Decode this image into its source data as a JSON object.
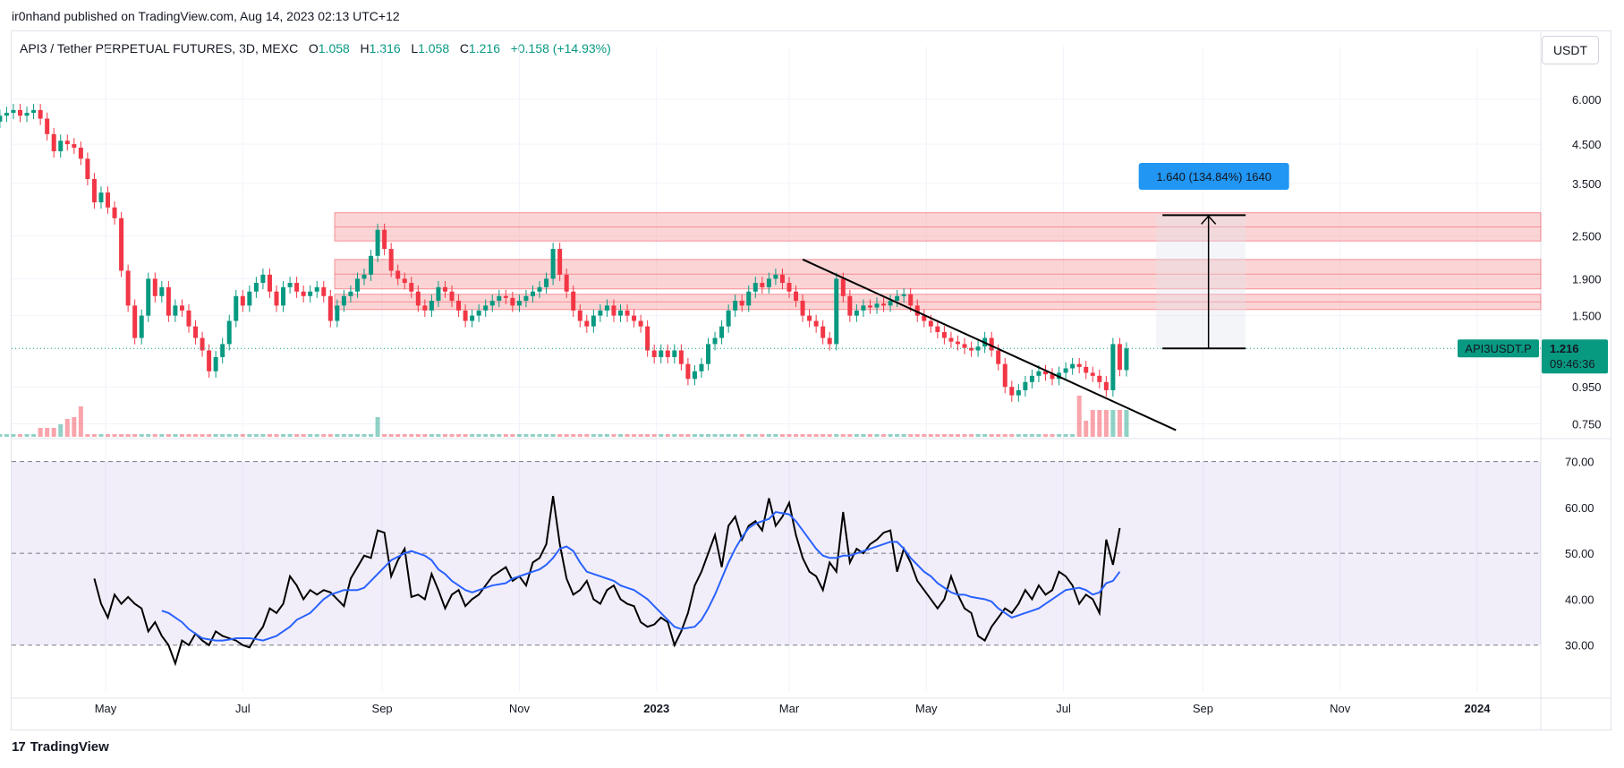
{
  "header": {
    "published": "ir0nhand published on TradingView.com, Aug 14, 2023 02:13 UTC+12"
  },
  "legend": {
    "symbol": "API3 / Tether PERPETUAL FUTURES, 3D, MEXC",
    "open_label": "O",
    "open": "1.058",
    "high_label": "H",
    "high": "1.316",
    "low_label": "L",
    "low": "1.058",
    "close_label": "C",
    "close": "1.216",
    "change": "+0.158 (+14.93%)"
  },
  "currency_button": "USDT",
  "footer": {
    "brand": "TradingView",
    "logo_icon": "tradingview-logo-icon"
  },
  "colors": {
    "up": "#089981",
    "down": "#f23645",
    "rsi": "#000000",
    "rsi_ma": "#2962ff",
    "rsi_band": "#7e57c2",
    "zone": "#f7a1a1",
    "measure_label": "#2196f3"
  },
  "chart_data": [
    {
      "type": "candlestick",
      "title": "",
      "scale": "log",
      "ylim": [
        0.69,
        7.5
      ],
      "x_tick_labels": [
        "May",
        "Jul",
        "Sep",
        "Nov",
        "2023",
        "Mar",
        "May",
        "Jul",
        "Sep",
        "Nov",
        "2024"
      ],
      "x_tick_dates": [
        "2022-05-01",
        "2022-07-01",
        "2022-09-01",
        "2022-11-01",
        "2023-01-01",
        "2023-03-01",
        "2023-05-01",
        "2023-07-01",
        "2023-09-01",
        "2023-11-01",
        "2024-01-01"
      ],
      "y_ticks": [
        "6.000",
        "4.500",
        "3.500",
        "2.500",
        "1.900",
        "1.500",
        "0.950",
        "0.750"
      ],
      "y_tick_values": [
        6.0,
        4.5,
        3.5,
        2.5,
        1.9,
        1.5,
        0.95,
        0.75
      ],
      "last_price_label": "API3USDT.P",
      "last_price": "1.216",
      "countdown": "09:46:36",
      "current_price": 1.216,
      "first_candle_date": "2022-03-12",
      "candle_interval_days": 3,
      "closes": [
        5.2,
        5.4,
        5.5,
        5.6,
        5.4,
        5.5,
        5.6,
        5.3,
        4.8,
        4.3,
        4.6,
        4.5,
        4.4,
        4.1,
        3.6,
        3.1,
        3.3,
        3.0,
        2.8,
        2.0,
        1.6,
        1.3,
        1.5,
        1.9,
        1.7,
        1.8,
        1.5,
        1.6,
        1.55,
        1.4,
        1.3,
        1.2,
        1.05,
        1.15,
        1.25,
        1.45,
        1.7,
        1.6,
        1.75,
        1.85,
        1.95,
        1.75,
        1.6,
        1.8,
        1.85,
        1.75,
        1.7,
        1.75,
        1.8,
        1.7,
        1.45,
        1.6,
        1.7,
        1.75,
        1.9,
        1.95,
        2.2,
        2.6,
        2.3,
        2.0,
        1.9,
        1.85,
        1.75,
        1.6,
        1.55,
        1.65,
        1.8,
        1.75,
        1.65,
        1.55,
        1.45,
        1.5,
        1.55,
        1.6,
        1.65,
        1.7,
        1.68,
        1.6,
        1.65,
        1.7,
        1.75,
        1.8,
        1.9,
        2.3,
        1.95,
        1.75,
        1.55,
        1.45,
        1.4,
        1.5,
        1.55,
        1.6,
        1.5,
        1.55,
        1.5,
        1.45,
        1.4,
        1.2,
        1.15,
        1.2,
        1.15,
        1.2,
        1.1,
        1.0,
        1.05,
        1.1,
        1.25,
        1.3,
        1.4,
        1.55,
        1.65,
        1.6,
        1.75,
        1.85,
        1.8,
        1.9,
        1.95,
        1.85,
        1.75,
        1.65,
        1.5,
        1.45,
        1.4,
        1.3,
        1.25,
        1.9,
        1.7,
        1.5,
        1.55,
        1.6,
        1.58,
        1.62,
        1.6,
        1.65,
        1.7,
        1.72,
        1.6,
        1.5,
        1.45,
        1.4,
        1.35,
        1.3,
        1.27,
        1.25,
        1.22,
        1.2,
        1.23,
        1.3,
        1.2,
        1.1,
        0.95,
        0.9,
        0.93,
        0.98,
        1.02,
        1.05,
        1.03,
        1.0,
        1.04,
        1.07,
        1.1,
        1.08,
        1.04,
        1.02,
        0.98,
        0.93,
        1.25,
        1.06,
        1.216
      ],
      "opens": [
        5.6,
        5.2,
        5.4,
        5.5,
        5.6,
        5.4,
        5.5,
        5.6,
        5.3,
        4.8,
        4.3,
        4.6,
        4.5,
        4.4,
        4.1,
        3.6,
        3.1,
        3.3,
        3.0,
        2.8,
        2.0,
        1.6,
        1.3,
        1.5,
        1.9,
        1.7,
        1.8,
        1.5,
        1.6,
        1.55,
        1.4,
        1.3,
        1.2,
        1.05,
        1.15,
        1.25,
        1.45,
        1.7,
        1.6,
        1.75,
        1.85,
        1.95,
        1.75,
        1.6,
        1.8,
        1.85,
        1.75,
        1.7,
        1.75,
        1.8,
        1.7,
        1.45,
        1.6,
        1.7,
        1.75,
        1.9,
        1.95,
        2.2,
        2.6,
        2.3,
        2.0,
        1.9,
        1.85,
        1.75,
        1.6,
        1.55,
        1.65,
        1.8,
        1.75,
        1.65,
        1.55,
        1.45,
        1.5,
        1.55,
        1.6,
        1.65,
        1.7,
        1.68,
        1.6,
        1.65,
        1.7,
        1.75,
        1.8,
        1.9,
        2.3,
        1.95,
        1.75,
        1.55,
        1.45,
        1.4,
        1.5,
        1.55,
        1.6,
        1.5,
        1.55,
        1.5,
        1.45,
        1.4,
        1.2,
        1.15,
        1.2,
        1.15,
        1.2,
        1.1,
        1.0,
        1.05,
        1.1,
        1.25,
        1.3,
        1.4,
        1.55,
        1.65,
        1.6,
        1.75,
        1.85,
        1.8,
        1.9,
        1.95,
        1.85,
        1.75,
        1.65,
        1.5,
        1.45,
        1.4,
        1.3,
        1.25,
        1.9,
        1.7,
        1.5,
        1.55,
        1.6,
        1.58,
        1.62,
        1.6,
        1.65,
        1.7,
        1.72,
        1.6,
        1.5,
        1.45,
        1.4,
        1.35,
        1.3,
        1.27,
        1.25,
        1.22,
        1.2,
        1.23,
        1.3,
        1.2,
        1.1,
        0.95,
        0.9,
        0.93,
        0.98,
        1.02,
        1.05,
        1.03,
        1.0,
        1.04,
        1.07,
        1.1,
        1.08,
        1.04,
        1.02,
        0.98,
        0.93,
        1.25,
        1.058
      ],
      "zones": [
        [
          2.42,
          2.9
        ],
        [
          1.78,
          2.15
        ],
        [
          1.56,
          1.72
        ]
      ],
      "trendline": [
        [
          "2023-03-07",
          2.15
        ],
        [
          "2023-08-20",
          0.72
        ]
      ],
      "measurement": {
        "label": "1.640 (134.84%) 1640",
        "from": 1.216,
        "to": 2.856,
        "start_date": "2023-08-14",
        "end_date": "2023-09-20"
      }
    },
    {
      "type": "line",
      "title": "",
      "ylim": [
        20,
        75
      ],
      "y_ticks": [
        "70.00",
        "60.00",
        "50.00",
        "40.00",
        "30.00"
      ],
      "y_tick_values": [
        70,
        60,
        50,
        40,
        30
      ],
      "band": [
        30,
        70
      ],
      "midline": 50,
      "rsi": [
        44.5,
        39,
        36,
        41,
        39,
        40.5,
        39,
        38,
        33,
        35,
        32,
        30,
        26,
        31,
        30,
        32.5,
        31,
        30,
        33,
        32,
        31.5,
        31,
        30,
        29.5,
        32,
        34,
        38,
        37,
        39,
        45,
        43,
        40,
        42,
        41,
        42,
        41.5,
        40,
        38.5,
        44.5,
        47,
        49.5,
        49,
        55,
        54.5,
        45,
        48.5,
        51,
        40.5,
        41,
        40,
        45.5,
        42,
        38,
        41,
        42,
        38.5,
        40,
        41,
        43,
        45,
        46,
        47,
        44,
        45,
        43,
        48,
        49,
        52,
        62.5,
        52,
        44.5,
        41,
        42,
        44,
        40,
        39,
        42,
        43,
        40,
        39,
        38.5,
        35,
        34,
        34.5,
        36,
        35,
        30,
        33,
        37,
        43,
        46,
        50,
        54,
        47,
        56,
        58,
        53,
        56,
        57,
        55,
        62,
        56,
        58,
        61,
        54,
        49,
        46,
        45,
        42,
        48,
        46,
        59,
        48,
        51,
        50,
        52,
        53,
        54.5,
        55,
        46,
        51,
        48,
        44,
        42,
        40,
        38,
        40,
        45,
        41,
        38,
        37,
        32,
        31,
        34,
        36,
        38,
        37,
        39,
        42,
        40,
        43,
        41,
        42,
        46,
        45,
        43,
        39,
        41,
        40,
        37,
        53,
        47.5,
        55.5
      ],
      "rsi_ma": [
        37.5,
        37,
        36,
        35,
        33.5,
        32.5,
        31.5,
        31,
        31,
        31.2,
        31.5,
        31.5,
        31.5,
        31.3,
        31,
        31.5,
        32,
        33,
        34,
        35.5,
        37,
        38.5,
        40,
        41,
        41.5,
        42,
        42,
        42,
        42.5,
        44,
        45.5,
        47,
        48.5,
        50,
        50.5,
        50,
        49.5,
        48.5,
        46.5,
        45.5,
        44,
        43,
        42,
        41.5,
        42,
        42.5,
        43,
        43.5,
        44.5,
        45,
        45.5,
        46,
        46.5,
        47.5,
        49,
        51,
        51.5,
        50.5,
        48,
        46,
        45,
        44.5,
        44,
        43,
        42.5,
        42,
        41,
        40,
        38.5,
        37,
        35.5,
        34,
        33.5,
        34,
        35.5,
        38,
        41,
        44.5,
        48,
        51,
        53.5,
        55.5,
        56.5,
        57,
        57.5,
        59,
        58.5,
        57,
        55,
        53,
        51,
        49.5,
        49,
        49,
        49.5,
        49.5,
        50,
        50.5,
        51,
        52,
        52.5,
        52.5,
        51,
        49,
        47.5,
        46,
        45,
        43.5,
        42.5,
        41.5,
        41,
        41,
        40.5,
        40,
        39.5,
        38,
        37,
        36,
        36.5,
        37,
        37.5,
        38,
        39,
        40,
        41,
        42,
        42.5,
        42,
        41,
        41.5,
        43.5,
        44,
        46
      ],
      "rsi_ma_start_index": 10
    }
  ]
}
